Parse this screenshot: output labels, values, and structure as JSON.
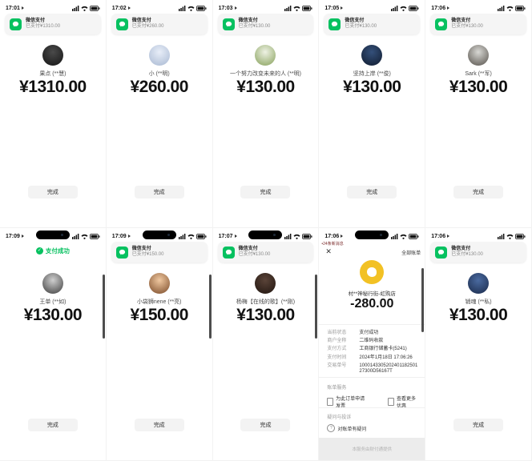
{
  "grid": {
    "banner_title": "微信支付",
    "done_label": "完成",
    "success_badge": "支付成功",
    "check_glyph": "✓",
    "accent_green": "#07c160",
    "cards": [
      {
        "time": "17:01",
        "type": "banner",
        "banner_sub": "已支付¥1310.00",
        "name": "果点 (**慧)",
        "amount": "¥1310.00",
        "avatar": [
          "#4a4a4a",
          "#141414"
        ],
        "island": false,
        "scrollbar": false
      },
      {
        "time": "17:02",
        "type": "banner",
        "banner_sub": "已支付¥260.00",
        "name": "小 (**明)",
        "amount": "¥260.00",
        "avatar": [
          "#e8eef8",
          "#a8b8d2"
        ],
        "island": false,
        "scrollbar": false
      },
      {
        "time": "17:03",
        "type": "banner",
        "banner_sub": "已支付¥130.00",
        "name": "一个努力改变未来的人 (**明)",
        "amount": "¥130.00",
        "avatar": [
          "#eef2e4",
          "#86a05a"
        ],
        "island": false,
        "scrollbar": false
      },
      {
        "time": "17:05",
        "type": "banner",
        "banner_sub": "已支付¥130.00",
        "name": "坚持上岸 (**俊)",
        "amount": "¥130.00",
        "avatar": [
          "#34507a",
          "#101b2e"
        ],
        "island": false,
        "scrollbar": false
      },
      {
        "time": "17:06",
        "type": "banner",
        "banner_sub": "已支付¥130.00",
        "name": "Sark (**军)",
        "amount": "¥130.00",
        "avatar": [
          "#d8d8d4",
          "#55504a"
        ],
        "island": false,
        "scrollbar": false
      },
      {
        "time": "17:09",
        "type": "badge",
        "banner_sub": "",
        "name": "王单 (**如)",
        "amount": "¥130.00",
        "avatar": [
          "#cfcfcf",
          "#3c3c3c"
        ],
        "island": true,
        "scrollbar": true
      },
      {
        "time": "17:09",
        "type": "banner",
        "banner_sub": "已支付¥150.00",
        "name": "小袋狮nene (**亮)",
        "amount": "¥150.00",
        "avatar": [
          "#f0c8a0",
          "#7a4a28"
        ],
        "island": true,
        "scrollbar": true
      },
      {
        "time": "17:07",
        "type": "banner",
        "banner_sub": "已支付¥130.00",
        "name": "杨梅【在线的歌】(**刚)",
        "amount": "¥130.00",
        "avatar": [
          "#5a4338",
          "#20150f"
        ],
        "island": true,
        "scrollbar": true
      },
      {
        "type": "bill"
      },
      {
        "time": "17:06",
        "type": "banner",
        "banner_sub": "已支付¥130.00",
        "name": "销魂 (**私)",
        "amount": "¥130.00",
        "avatar": [
          "#4a6aa0",
          "#1a2a4a"
        ],
        "island": false,
        "scrollbar": false
      }
    ]
  },
  "bill": {
    "time": "17:06",
    "new_messages": "•24条新消息",
    "close_glyph": "✕",
    "all_bills": "全部账单",
    "merchant": "村**神秘行街-虹购店",
    "amount": "-280.00",
    "details": [
      {
        "label": "当前状态",
        "value": "支付成功"
      },
      {
        "label": "商户全称",
        "value": "二维码收款"
      },
      {
        "label": "支付方式",
        "value": "工商银行储蓄卡(5241)"
      },
      {
        "label": "支付时间",
        "value": "2024年1月18日 17:06:26"
      },
      {
        "label": "交易单号",
        "value": "100014330520240118250127300D56167T"
      }
    ],
    "services_title": "账单服务",
    "services": [
      {
        "label": "为此订单申请发票"
      },
      {
        "label": "查看更多优惠"
      }
    ],
    "help_title": "疑问与投诉",
    "help_item": "对账单有疑问",
    "ad_text": "本服务由财付通提供",
    "logo_color": "#f2c124"
  }
}
